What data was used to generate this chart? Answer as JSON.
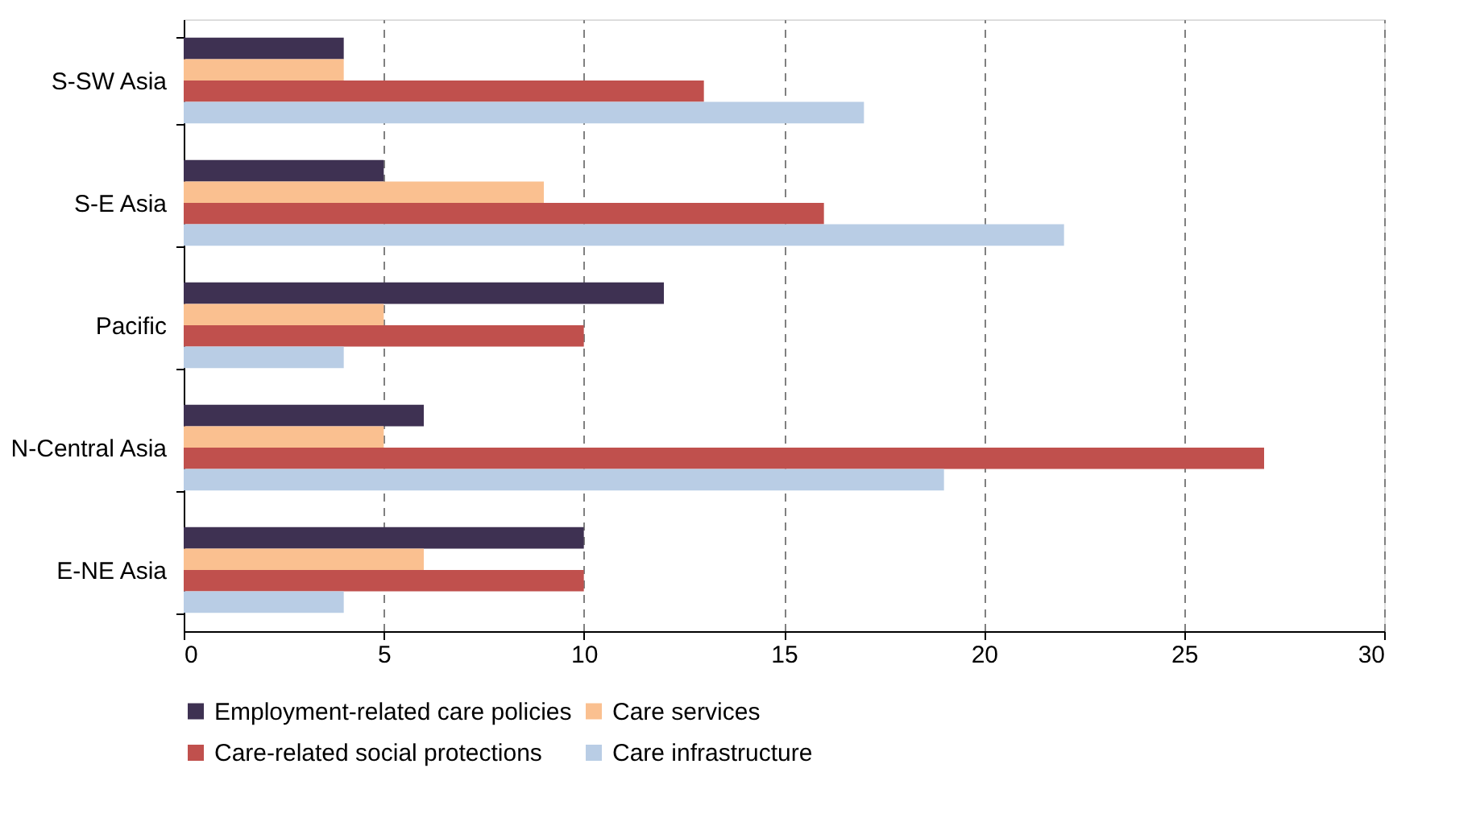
{
  "chart_data": {
    "type": "bar",
    "orientation": "horizontal",
    "categories": [
      "S-SW Asia",
      "S-E Asia",
      "Pacific",
      "N-Central Asia",
      "E-NE Asia"
    ],
    "series": [
      {
        "name": "Employment-related care policies",
        "color": "#3e3152",
        "values": [
          4,
          5,
          12,
          6,
          10
        ]
      },
      {
        "name": "Care services",
        "color": "#fac090",
        "values": [
          4,
          9,
          5,
          5,
          6
        ]
      },
      {
        "name": "Care-related social protections",
        "color": "#c0504d",
        "values": [
          13,
          16,
          10,
          27,
          10
        ]
      },
      {
        "name": "Care infrastructure",
        "color": "#b9cde5",
        "values": [
          17,
          22,
          4,
          19,
          4
        ]
      }
    ],
    "xlim": [
      0,
      30
    ],
    "xticks": [
      0,
      5,
      10,
      15,
      20,
      25,
      30
    ],
    "grid": "x",
    "legend": "bottom"
  }
}
